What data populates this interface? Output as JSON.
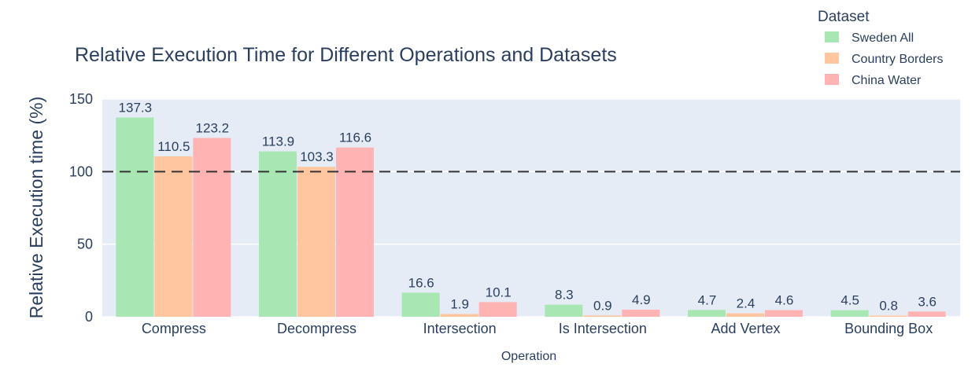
{
  "chart_data": {
    "type": "bar",
    "title": "Relative Execution Time for Different Operations and Datasets",
    "xlabel": "Operation",
    "ylabel": "Relative Execution time (%)",
    "ylim": [
      0,
      150
    ],
    "yticks": [
      0,
      50,
      100,
      150
    ],
    "reference_line": 100,
    "categories": [
      "Compress",
      "Decompress",
      "Intersection",
      "Is Intersection",
      "Add Vertex",
      "Bounding Box"
    ],
    "legend_title": "Dataset",
    "legend_position": "top-right",
    "grid": true,
    "series": [
      {
        "name": "Sweden All",
        "color": "#a8e6b4",
        "values": [
          137.3,
          113.9,
          16.6,
          8.3,
          4.7,
          4.5
        ],
        "labels": [
          "137.3",
          "113.9",
          "16.6",
          "8.3",
          "4.7",
          "4.5"
        ]
      },
      {
        "name": "Country Borders",
        "color": "#ffc69f",
        "values": [
          110.5,
          103.3,
          1.9,
          0.9,
          2.4,
          0.8
        ],
        "labels": [
          "110.5",
          "103.3",
          "1.9",
          "0.9",
          "2.4",
          "0.8"
        ]
      },
      {
        "name": "China Water",
        "color": "#ffb3b3",
        "values": [
          123.2,
          116.6,
          10.1,
          4.9,
          4.6,
          3.6
        ],
        "labels": [
          "123.2",
          "116.6",
          "10.1",
          "4.9",
          "4.6",
          "3.6"
        ]
      }
    ]
  }
}
